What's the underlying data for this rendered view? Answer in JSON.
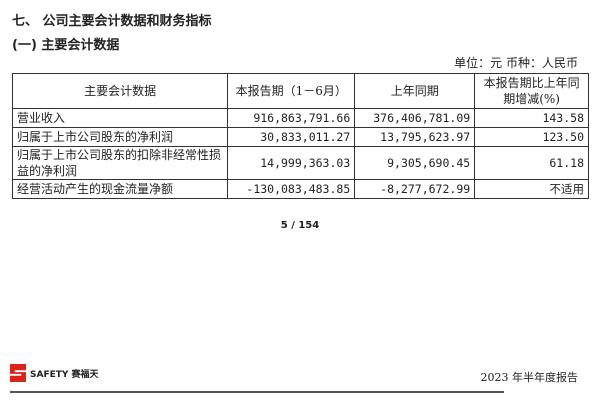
{
  "section_title": "七、 公司主要会计数据和财务指标",
  "subsection_title": "(一) 主要会计数据",
  "unit_line": "单位：元   币种：人民币",
  "table": {
    "headers": [
      "主要会计数据",
      "本报告期（1－6月）",
      "上年同期",
      "本报告期比上年同期增减(%)"
    ],
    "rows": [
      [
        "营业收入",
        "916,863,791.66",
        "376,406,781.09",
        "143.58"
      ],
      [
        "归属于上市公司股东的净利润",
        "30,833,011.27",
        "13,795,623.97",
        "123.50"
      ],
      [
        "归属于上市公司股东的扣除非经常性损益的净利润",
        "14,999,363.03",
        "9,305,690.45",
        "61.18"
      ],
      [
        "经营活动产生的现金流量净额",
        "-130,083,483.85",
        "-8,277,672.99",
        "不适用"
      ]
    ]
  },
  "page_number": "5 / 154",
  "footer": {
    "logo_text": "SAFETY 赛福天",
    "report_title": "2023 年半年度报告",
    "brand_color": "#d9241b"
  }
}
